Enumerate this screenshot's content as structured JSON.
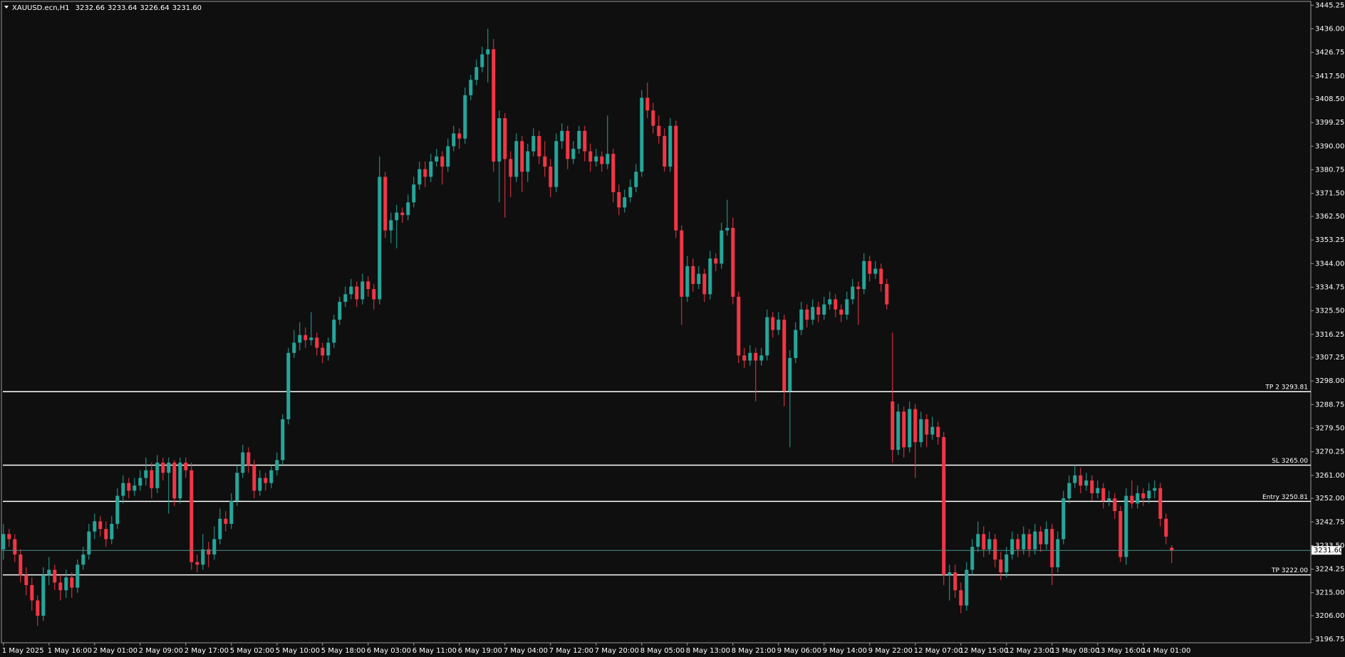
{
  "chart_data": {
    "type": "candlestick",
    "title": "XAUUSD.ecn,H1",
    "title_values": [
      "3232.66",
      "3233.64",
      "3226.64",
      "3231.60"
    ],
    "bull_color": "#26a69a",
    "bear_color": "#f23645",
    "ylim": [
      3195.4,
      3447.3
    ],
    "yticks": [
      3196.75,
      {
        "value": 3206,
        "label": "3206.00"
      },
      {
        "value": 3215,
        "label": "3215.00"
      },
      3224.25,
      {
        "value": 3233.5,
        "label": "3233.50"
      },
      3242.75,
      {
        "value": 3252,
        "label": "3252.00"
      },
      {
        "value": 3261,
        "label": "3261.00"
      },
      3270.25,
      {
        "value": 3279.5,
        "label": "3279.50"
      },
      3288.75,
      {
        "value": 3298,
        "label": "3298.00"
      },
      3307.25,
      3316.25,
      {
        "value": 3325.5,
        "label": "3325.50"
      },
      3334.75,
      {
        "value": 3344,
        "label": "3344.00"
      },
      3353.25,
      {
        "value": 3362.5,
        "label": "3362.50"
      },
      {
        "value": 3371.5,
        "label": "3371.50"
      },
      3380.75,
      {
        "value": 3390,
        "label": "3390.00"
      },
      3399.25,
      {
        "value": 3408.5,
        "label": "3408.50"
      },
      {
        "value": 3417.5,
        "label": "3417.50"
      },
      3426.75,
      {
        "value": 3436,
        "label": "3436.00"
      },
      3445.25
    ],
    "levels": [
      {
        "label": "TP 2 3293.81",
        "value": 3293.81
      },
      {
        "label": "SL 3265.00",
        "value": 3265
      },
      {
        "label": "Entry 3250.81",
        "value": 3250.81
      },
      {
        "label": "TP 3222.00",
        "value": 3222
      }
    ],
    "current_price": {
      "value": 3231.6,
      "label": "3231.60"
    },
    "categories": [
      "1 May 2025",
      null,
      null,
      null,
      null,
      null,
      null,
      null,
      "1 May 16:00",
      null,
      null,
      null,
      null,
      null,
      null,
      null,
      "2 May 01:00",
      null,
      null,
      null,
      null,
      null,
      null,
      null,
      "2 May 09:00",
      null,
      null,
      null,
      null,
      null,
      null,
      null,
      "2 May 17:00",
      null,
      null,
      null,
      null,
      null,
      null,
      null,
      "5 May 02:00",
      null,
      null,
      null,
      null,
      null,
      null,
      null,
      "5 May 10:00",
      null,
      null,
      null,
      null,
      null,
      null,
      null,
      "5 May 18:00",
      null,
      null,
      null,
      null,
      null,
      null,
      null,
      "6 May 03:00",
      null,
      null,
      null,
      null,
      null,
      null,
      null,
      "6 May 11:00",
      null,
      null,
      null,
      null,
      null,
      null,
      null,
      "6 May 19:00",
      null,
      null,
      null,
      null,
      null,
      null,
      null,
      "7 May 04:00",
      null,
      null,
      null,
      null,
      null,
      null,
      null,
      "7 May 12:00",
      null,
      null,
      null,
      null,
      null,
      null,
      null,
      "7 May 20:00",
      null,
      null,
      null,
      null,
      null,
      null,
      null,
      "8 May 05:00",
      null,
      null,
      null,
      null,
      null,
      null,
      null,
      "8 May 13:00",
      null,
      null,
      null,
      null,
      null,
      null,
      null,
      "8 May 21:00",
      null,
      null,
      null,
      null,
      null,
      null,
      null,
      "9 May 06:00",
      null,
      null,
      null,
      null,
      null,
      null,
      null,
      "9 May 14:00",
      null,
      null,
      null,
      null,
      null,
      null,
      null,
      "9 May 22:00",
      null,
      null,
      null,
      null,
      null,
      null,
      null,
      "12 May 07:00",
      null,
      null,
      null,
      null,
      null,
      null,
      null,
      "12 May 15:00",
      null,
      null,
      null,
      null,
      null,
      null,
      null,
      "12 May 23:00",
      null,
      null,
      null,
      null,
      null,
      null,
      null,
      "13 May 08:00",
      null,
      null,
      null,
      null,
      null,
      null,
      null,
      "13 May 16:00",
      null,
      null,
      null,
      null,
      null,
      null,
      null,
      "14 May 01:00",
      null,
      null,
      null,
      null,
      null
    ],
    "ohlc": [
      [
        3232,
        3242,
        3228,
        3238
      ],
      [
        3238,
        3240,
        3233,
        3236
      ],
      [
        3236,
        3238,
        3227,
        3230
      ],
      [
        3230,
        3232,
        3219,
        3222
      ],
      [
        3222,
        3225,
        3214,
        3218
      ],
      [
        3218,
        3221,
        3208,
        3212
      ],
      [
        3212,
        3214,
        3202,
        3206
      ],
      [
        3206,
        3225,
        3204,
        3222
      ],
      [
        3222,
        3229,
        3218,
        3224
      ],
      [
        3224,
        3226,
        3216,
        3219
      ],
      [
        3219,
        3222,
        3212,
        3216
      ],
      [
        3216,
        3224,
        3213,
        3221
      ],
      [
        3221,
        3223,
        3213,
        3217
      ],
      [
        3217,
        3228,
        3215,
        3226
      ],
      [
        3226,
        3233,
        3224,
        3230
      ],
      [
        3230,
        3242,
        3228,
        3239
      ],
      [
        3239,
        3246,
        3236,
        3243
      ],
      [
        3243,
        3245,
        3237,
        3240
      ],
      [
        3240,
        3243,
        3233,
        3236
      ],
      [
        3236,
        3245,
        3234,
        3242
      ],
      [
        3242,
        3256,
        3240,
        3253
      ],
      [
        3253,
        3261,
        3250,
        3258
      ],
      [
        3258,
        3260,
        3252,
        3255
      ],
      [
        3255,
        3260,
        3253,
        3257
      ],
      [
        3257,
        3263,
        3255,
        3260
      ],
      [
        3260,
        3268,
        3257,
        3263
      ],
      [
        3263,
        3266,
        3252,
        3256
      ],
      [
        3256,
        3269,
        3254,
        3266
      ],
      [
        3266,
        3268,
        3259,
        3262
      ],
      [
        3262,
        3268,
        3246,
        3266
      ],
      [
        3266,
        3267,
        3249,
        3252
      ],
      [
        3252,
        3268,
        3250,
        3266
      ],
      [
        3266,
        3268,
        3260,
        3263
      ],
      [
        3263,
        3266,
        3224,
        3227
      ],
      [
        3227,
        3230,
        3223,
        3226
      ],
      [
        3226,
        3238,
        3224,
        3232
      ],
      [
        3232,
        3235,
        3225,
        3230
      ],
      [
        3230,
        3241,
        3228,
        3236
      ],
      [
        3236,
        3248,
        3234,
        3244
      ],
      [
        3244,
        3247,
        3239,
        3242
      ],
      [
        3242,
        3254,
        3240,
        3251
      ],
      [
        3251,
        3265,
        3249,
        3262
      ],
      [
        3262,
        3273,
        3260,
        3270
      ],
      [
        3270,
        3272,
        3262,
        3265
      ],
      [
        3265,
        3267,
        3252,
        3255
      ],
      [
        3255,
        3263,
        3253,
        3260
      ],
      [
        3260,
        3262,
        3255,
        3258
      ],
      [
        3258,
        3265,
        3256,
        3263
      ],
      [
        3263,
        3270,
        3261,
        3267
      ],
      [
        3267,
        3285,
        3265,
        3283
      ],
      [
        3283,
        3311,
        3281,
        3309
      ],
      [
        3309,
        3318,
        3307,
        3313
      ],
      [
        3313,
        3321,
        3310,
        3316
      ],
      [
        3316,
        3319,
        3311,
        3314
      ],
      [
        3314,
        3325,
        3312,
        3315
      ],
      [
        3315,
        3317,
        3308,
        3311
      ],
      [
        3311,
        3313,
        3305,
        3308
      ],
      [
        3308,
        3315,
        3306,
        3313
      ],
      [
        3313,
        3324,
        3311,
        3322
      ],
      [
        3322,
        3331,
        3320,
        3329
      ],
      [
        3329,
        3335,
        3327,
        3332
      ],
      [
        3332,
        3338,
        3330,
        3335
      ],
      [
        3335,
        3337,
        3327,
        3330
      ],
      [
        3330,
        3340,
        3328,
        3337
      ],
      [
        3337,
        3339,
        3331,
        3334
      ],
      [
        3334,
        3336,
        3326,
        3330
      ],
      [
        3330,
        3386,
        3328,
        3378
      ],
      [
        3378,
        3380,
        3354,
        3357
      ],
      [
        3357,
        3364,
        3352,
        3361
      ],
      [
        3361,
        3367,
        3350,
        3364
      ],
      [
        3364,
        3366,
        3360,
        3363
      ],
      [
        3363,
        3371,
        3361,
        3368
      ],
      [
        3368,
        3378,
        3366,
        3375
      ],
      [
        3375,
        3384,
        3373,
        3381
      ],
      [
        3381,
        3384,
        3374,
        3378
      ],
      [
        3378,
        3387,
        3376,
        3384
      ],
      [
        3384,
        3389,
        3382,
        3386
      ],
      [
        3386,
        3388,
        3375,
        3382
      ],
      [
        3382,
        3393,
        3380,
        3390
      ],
      [
        3390,
        3398,
        3388,
        3395
      ],
      [
        3395,
        3397,
        3389,
        3393
      ],
      [
        3393,
        3413,
        3391,
        3410
      ],
      [
        3410,
        3418,
        3408,
        3416
      ],
      [
        3416,
        3424,
        3414,
        3421
      ],
      [
        3421,
        3429,
        3419,
        3426
      ],
      [
        3426,
        3436,
        3415,
        3428
      ],
      [
        3428,
        3432,
        3380,
        3384
      ],
      [
        3384,
        3404,
        3368,
        3401
      ],
      [
        3401,
        3403,
        3362,
        3385
      ],
      [
        3385,
        3388,
        3370,
        3378
      ],
      [
        3378,
        3395,
        3376,
        3392
      ],
      [
        3392,
        3394,
        3372,
        3380
      ],
      [
        3380,
        3391,
        3376,
        3388
      ],
      [
        3388,
        3397,
        3386,
        3394
      ],
      [
        3394,
        3396,
        3383,
        3386
      ],
      [
        3386,
        3392,
        3378,
        3382
      ],
      [
        3382,
        3385,
        3370,
        3374
      ],
      [
        3374,
        3395,
        3372,
        3392
      ],
      [
        3392,
        3399,
        3389,
        3396
      ],
      [
        3396,
        3398,
        3381,
        3385
      ],
      [
        3385,
        3392,
        3383,
        3389
      ],
      [
        3389,
        3398,
        3387,
        3396
      ],
      [
        3396,
        3398,
        3384,
        3388
      ],
      [
        3388,
        3391,
        3380,
        3384
      ],
      [
        3384,
        3389,
        3382,
        3386
      ],
      [
        3386,
        3388,
        3380,
        3383
      ],
      [
        3383,
        3402,
        3381,
        3387
      ],
      [
        3387,
        3389,
        3368,
        3372
      ],
      [
        3372,
        3375,
        3363,
        3366
      ],
      [
        3366,
        3373,
        3364,
        3370
      ],
      [
        3370,
        3377,
        3368,
        3374
      ],
      [
        3374,
        3383,
        3372,
        3380
      ],
      [
        3380,
        3412,
        3378,
        3409
      ],
      [
        3409,
        3415,
        3401,
        3404
      ],
      [
        3404,
        3407,
        3395,
        3398
      ],
      [
        3398,
        3402,
        3391,
        3394
      ],
      [
        3394,
        3397,
        3380,
        3382
      ],
      [
        3382,
        3401,
        3380,
        3398
      ],
      [
        3398,
        3400,
        3354,
        3357
      ],
      [
        3357,
        3359,
        3320,
        3331
      ],
      [
        3331,
        3347,
        3329,
        3343
      ],
      [
        3343,
        3346,
        3333,
        3336
      ],
      [
        3336,
        3343,
        3334,
        3340
      ],
      [
        3340,
        3342,
        3329,
        3332
      ],
      [
        3332,
        3349,
        3330,
        3346
      ],
      [
        3346,
        3348,
        3341,
        3344
      ],
      [
        3344,
        3360,
        3342,
        3357
      ],
      [
        3357,
        3369,
        3355,
        3358
      ],
      [
        3358,
        3362,
        3328,
        3331
      ],
      [
        3331,
        3333,
        3305,
        3308
      ],
      [
        3308,
        3311,
        3303,
        3306
      ],
      [
        3306,
        3312,
        3304,
        3309
      ],
      [
        3309,
        3311,
        3290,
        3306
      ],
      [
        3306,
        3311,
        3304,
        3308
      ],
      [
        3308,
        3326,
        3306,
        3323
      ],
      [
        3323,
        3325,
        3315,
        3318
      ],
      [
        3318,
        3325,
        3316,
        3322
      ],
      [
        3322,
        3324,
        3288,
        3294
      ],
      [
        3294,
        3310,
        3272,
        3307
      ],
      [
        3307,
        3321,
        3305,
        3318
      ],
      [
        3318,
        3329,
        3316,
        3326
      ],
      [
        3326,
        3328,
        3319,
        3322
      ],
      [
        3322,
        3330,
        3320,
        3327
      ],
      [
        3327,
        3329,
        3321,
        3324
      ],
      [
        3324,
        3331,
        3322,
        3328
      ],
      [
        3328,
        3333,
        3326,
        3330
      ],
      [
        3330,
        3332,
        3323,
        3326
      ],
      [
        3326,
        3328,
        3321,
        3324
      ],
      [
        3324,
        3333,
        3322,
        3330
      ],
      [
        3330,
        3338,
        3328,
        3335
      ],
      [
        3335,
        3337,
        3320,
        3334
      ],
      [
        3334,
        3348,
        3332,
        3345
      ],
      [
        3345,
        3347,
        3337,
        3340
      ],
      [
        3340,
        3345,
        3338,
        3342
      ],
      [
        3342,
        3344,
        3333,
        3336
      ],
      [
        3336,
        3338,
        3326,
        3328
      ],
      [
        3290,
        3317,
        3266,
        3271
      ],
      [
        3271,
        3289,
        3269,
        3286
      ],
      [
        3286,
        3288,
        3268,
        3272
      ],
      [
        3272,
        3290,
        3270,
        3287
      ],
      [
        3287,
        3289,
        3260,
        3274
      ],
      [
        3274,
        3286,
        3272,
        3283
      ],
      [
        3283,
        3285,
        3272,
        3277
      ],
      [
        3277,
        3284,
        3275,
        3280
      ],
      [
        3280,
        3282,
        3273,
        3276
      ],
      [
        3276,
        3278,
        3218,
        3222
      ],
      [
        3222,
        3226,
        3212,
        3223
      ],
      [
        3223,
        3226,
        3213,
        3216
      ],
      [
        3216,
        3219,
        3207,
        3210
      ],
      [
        3210,
        3227,
        3208,
        3224
      ],
      [
        3224,
        3236,
        3222,
        3233
      ],
      [
        3233,
        3243,
        3231,
        3238
      ],
      [
        3238,
        3241,
        3229,
        3232
      ],
      [
        3232,
        3239,
        3230,
        3236
      ],
      [
        3236,
        3238,
        3225,
        3228
      ],
      [
        3228,
        3231,
        3220,
        3223
      ],
      [
        3223,
        3233,
        3221,
        3230
      ],
      [
        3230,
        3239,
        3228,
        3236
      ],
      [
        3236,
        3238,
        3229,
        3232
      ],
      [
        3232,
        3241,
        3230,
        3238
      ],
      [
        3238,
        3240,
        3229,
        3232
      ],
      [
        3232,
        3242,
        3230,
        3239
      ],
      [
        3239,
        3241,
        3231,
        3234
      ],
      [
        3234,
        3243,
        3232,
        3240
      ],
      [
        3240,
        3242,
        3218,
        3225
      ],
      [
        3225,
        3239,
        3223,
        3236
      ],
      [
        3236,
        3255,
        3234,
        3252
      ],
      [
        3252,
        3261,
        3250,
        3258
      ],
      [
        3258,
        3265,
        3256,
        3261
      ],
      [
        3261,
        3264,
        3254,
        3257
      ],
      [
        3257,
        3262,
        3255,
        3259
      ],
      [
        3259,
        3261,
        3251,
        3254
      ],
      [
        3254,
        3259,
        3252,
        3256
      ],
      [
        3256,
        3258,
        3248,
        3251
      ],
      [
        3251,
        3255,
        3249,
        3252
      ],
      [
        3252,
        3254,
        3244,
        3247
      ],
      [
        3247,
        3249,
        3227,
        3229
      ],
      [
        3229,
        3256,
        3226,
        3253
      ],
      [
        3253,
        3259,
        3248,
        3250
      ],
      [
        3250,
        3257,
        3248,
        3254
      ],
      [
        3254,
        3256,
        3249,
        3252
      ],
      [
        3252,
        3258,
        3250,
        3255
      ],
      [
        3255,
        3259,
        3252,
        3256
      ],
      [
        3256,
        3258,
        3241,
        3244
      ],
      [
        3244,
        3246,
        3234,
        3237
      ],
      [
        3232.66,
        3233.64,
        3226.64,
        3231.6
      ]
    ]
  }
}
